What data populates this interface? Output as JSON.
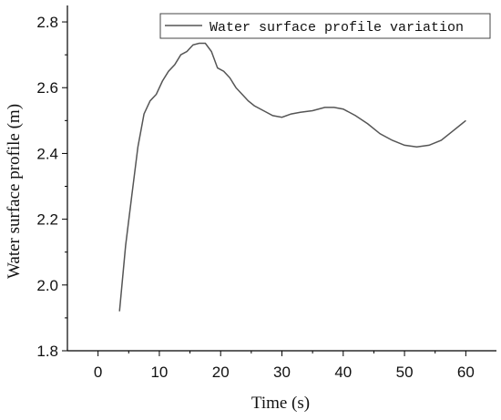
{
  "chart_data": {
    "type": "line",
    "xlabel": "Time (s)",
    "ylabel": "Water surface profile (m)",
    "xlim": [
      -5,
      65
    ],
    "ylim": [
      1.8,
      2.85
    ],
    "xticks": [
      0,
      10,
      20,
      30,
      40,
      50,
      60
    ],
    "yticks": [
      1.8,
      2.0,
      2.2,
      2.4,
      2.6,
      2.8
    ],
    "ytick_labels": [
      "1.8",
      "2.0",
      "2.2",
      "2.4",
      "2.6",
      "2.8"
    ],
    "grid": false,
    "legend_position": "top-right",
    "series": [
      {
        "name": "Water surface profile variation",
        "color": "#555555",
        "x": [
          3.5,
          4.5,
          5.5,
          6.5,
          7.5,
          8.5,
          9.5,
          10.5,
          11.5,
          12.5,
          13.5,
          14.5,
          15.5,
          16.5,
          17.5,
          18.5,
          19.5,
          20.5,
          21.5,
          22.5,
          23.5,
          24.5,
          25.5,
          27,
          28.5,
          30,
          31.5,
          33,
          35,
          37,
          38.5,
          40,
          42,
          44,
          46,
          48,
          50,
          52,
          54,
          56,
          58,
          60
        ],
        "y": [
          1.92,
          2.12,
          2.27,
          2.42,
          2.52,
          2.56,
          2.58,
          2.62,
          2.65,
          2.67,
          2.7,
          2.71,
          2.73,
          2.735,
          2.735,
          2.71,
          2.66,
          2.65,
          2.63,
          2.6,
          2.58,
          2.56,
          2.545,
          2.53,
          2.515,
          2.51,
          2.52,
          2.525,
          2.53,
          2.54,
          2.54,
          2.535,
          2.515,
          2.49,
          2.46,
          2.44,
          2.425,
          2.42,
          2.425,
          2.44,
          2.47,
          2.5
        ]
      }
    ]
  }
}
